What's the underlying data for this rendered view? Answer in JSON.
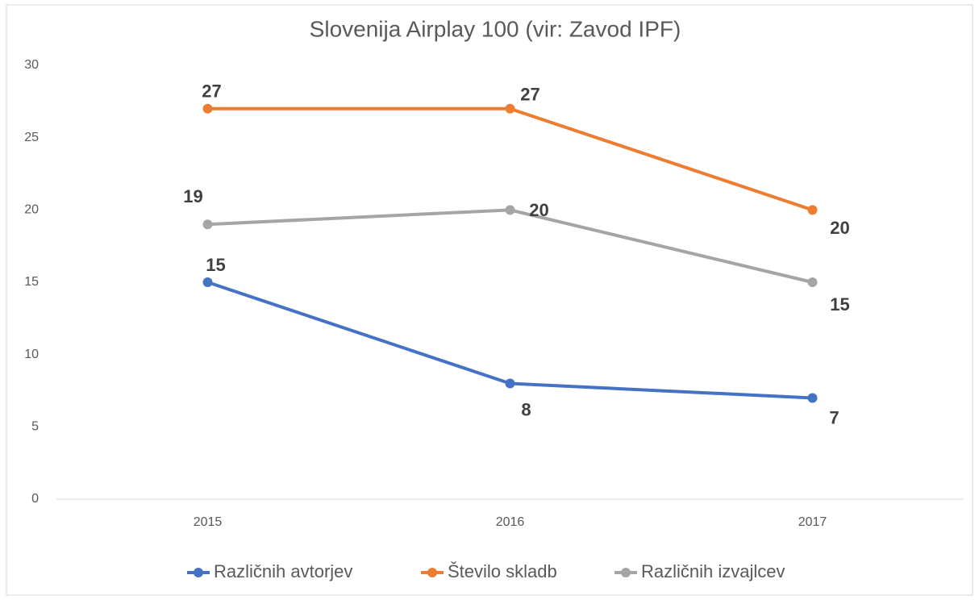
{
  "chart_data": {
    "type": "line",
    "title": "Slovenija Airplay 100 (vir: Zavod IPF)",
    "categories": [
      "2015",
      "2016",
      "2017"
    ],
    "series": [
      {
        "name": "Različnih avtorjev",
        "color": "#4472c4",
        "values": [
          15,
          8,
          7
        ]
      },
      {
        "name": "Število skladb",
        "color": "#ed7d31",
        "values": [
          27,
          27,
          20
        ]
      },
      {
        "name": "Različnih izvajlcev",
        "color": "#a5a5a5",
        "values": [
          19,
          20,
          15
        ]
      }
    ],
    "ylim": [
      0,
      30
    ],
    "yticks": [
      0,
      5,
      10,
      15,
      20,
      25,
      30
    ],
    "grid": false,
    "legend": "bottom"
  }
}
